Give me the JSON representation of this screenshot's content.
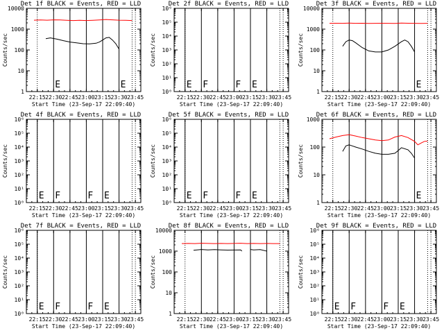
{
  "chart_data": [
    {
      "type": "line",
      "title": "Det 1f BLACK = Events, RED = LLD",
      "xlabel": "Start Time (23-Sep-17 22:09:40)",
      "ylabel": "Counts/sec",
      "yscale": "log",
      "ylim": [
        1,
        10000
      ],
      "yticks": [
        "1",
        "10",
        "100",
        "1000",
        "10000"
      ],
      "xticks": [
        "22:15",
        "22:30",
        "22:45",
        "23:00",
        "23:15",
        "23:30",
        "23:45"
      ],
      "markers": [
        {
          "x": 22.5,
          "label": "E"
        },
        {
          "x": 22.75,
          "label": ""
        },
        {
          "x": 23.0,
          "label": ""
        },
        {
          "x": 23.25,
          "label": ""
        },
        {
          "x": 23.5,
          "label": "E"
        }
      ],
      "series": [
        {
          "name": "Events",
          "color": "#000000",
          "x": [
            22.38,
            22.45,
            22.55,
            22.65,
            22.75,
            22.85,
            22.95,
            23.05,
            23.15,
            23.2,
            23.25,
            23.3,
            23.35,
            23.4,
            23.45,
            23.5
          ],
          "y": [
            350,
            380,
            330,
            280,
            240,
            220,
            200,
            195,
            210,
            240,
            300,
            380,
            400,
            300,
            200,
            110
          ]
        },
        {
          "name": "LLD",
          "color": "#ff0000",
          "x": [
            22.2,
            22.3,
            22.4,
            22.5,
            22.6,
            22.7,
            22.8,
            22.9,
            23.0,
            23.1,
            23.2,
            23.3,
            23.4,
            23.5,
            23.6,
            23.7
          ],
          "y": [
            2700,
            2750,
            2700,
            2800,
            2750,
            2650,
            2600,
            2650,
            2600,
            2650,
            2750,
            2900,
            2800,
            2700,
            2650,
            2600
          ]
        }
      ]
    },
    {
      "type": "line",
      "title": "Det 2f BLACK = Events, RED = LLD",
      "xlabel": "Start Time (23-Sep-17 22:09:40)",
      "ylabel": "Counts/sec",
      "yscale": "log",
      "ylim": [
        1,
        1000000
      ],
      "yticks": [
        "10⁰",
        "10¹",
        "10²",
        "10³",
        "10⁴",
        "10⁵",
        "10⁶"
      ],
      "xticks": [
        "22:15",
        "22:30",
        "22:45",
        "23:00",
        "23:15",
        "23:30",
        "23:45"
      ],
      "markers": [
        {
          "x": 22.25,
          "label": "E"
        },
        {
          "x": 22.5,
          "label": "F"
        },
        {
          "x": 22.75,
          "label": ""
        },
        {
          "x": 23.0,
          "label": "F"
        },
        {
          "x": 23.25,
          "label": "E"
        },
        {
          "x": 23.5,
          "label": ""
        }
      ],
      "series": []
    },
    {
      "type": "line",
      "title": "Det 3f BLACK = Events, RED = LLD",
      "xlabel": "Start Time (23-Sep-17 22:09:40)",
      "ylabel": "Counts/sec",
      "yscale": "log",
      "ylim": [
        1,
        10000
      ],
      "yticks": [
        "1",
        "10",
        "100",
        "1000",
        "10000"
      ],
      "xticks": [
        "22:15",
        "22:30",
        "22:45",
        "23:00",
        "23:15",
        "23:30",
        "23:45"
      ],
      "markers": [
        {
          "x": 22.5,
          "label": ""
        },
        {
          "x": 22.75,
          "label": ""
        },
        {
          "x": 23.0,
          "label": ""
        },
        {
          "x": 23.25,
          "label": ""
        },
        {
          "x": 23.5,
          "label": "E"
        }
      ],
      "series": [
        {
          "name": "Events",
          "color": "#000000",
          "x": [
            22.4,
            22.45,
            22.5,
            22.55,
            22.6,
            22.7,
            22.8,
            22.9,
            23.0,
            23.1,
            23.2,
            23.3,
            23.35,
            23.4,
            23.45,
            23.5
          ],
          "y": [
            150,
            250,
            300,
            280,
            220,
            130,
            90,
            80,
            80,
            100,
            150,
            250,
            300,
            250,
            150,
            80
          ]
        },
        {
          "name": "LLD",
          "color": "#ff0000",
          "x": [
            22.2,
            22.3,
            22.4,
            22.5,
            22.6,
            22.7,
            22.8,
            22.9,
            23.0,
            23.1,
            23.2,
            23.3,
            23.4,
            23.5,
            23.6,
            23.7
          ],
          "y": [
            1900,
            1920,
            1900,
            1950,
            1900,
            1920,
            1880,
            1900,
            1920,
            1900,
            1880,
            1950,
            1920,
            1900,
            1880,
            1900
          ]
        }
      ]
    },
    {
      "type": "line",
      "title": "Det 4f BLACK = Events, RED = LLD",
      "xlabel": "Start Time (23-Sep-17 22:09:40)",
      "ylabel": "Counts/sec",
      "yscale": "log",
      "ylim": [
        1,
        1000000
      ],
      "yticks": [
        "10⁰",
        "10¹",
        "10²",
        "10³",
        "10⁴",
        "10⁵",
        "10⁶"
      ],
      "xticks": [
        "22:15",
        "22:30",
        "22:45",
        "23:00",
        "23:15",
        "23:30",
        "23:45"
      ],
      "markers": [
        {
          "x": 22.25,
          "label": "E"
        },
        {
          "x": 22.5,
          "label": "F"
        },
        {
          "x": 22.75,
          "label": ""
        },
        {
          "x": 23.0,
          "label": "F"
        },
        {
          "x": 23.25,
          "label": "E"
        },
        {
          "x": 23.5,
          "label": ""
        }
      ],
      "series": []
    },
    {
      "type": "line",
      "title": "Det 5f BLACK = Events, RED = LLD",
      "xlabel": "Start Time (23-Sep-17 22:09:40)",
      "ylabel": "Counts/sec",
      "yscale": "log",
      "ylim": [
        1,
        1000000
      ],
      "yticks": [
        "10⁰",
        "10¹",
        "10²",
        "10³",
        "10⁴",
        "10⁵",
        "10⁶"
      ],
      "xticks": [
        "22:15",
        "22:30",
        "22:45",
        "23:00",
        "23:15",
        "23:30",
        "23:45"
      ],
      "markers": [
        {
          "x": 22.25,
          "label": "E"
        },
        {
          "x": 22.5,
          "label": "F"
        },
        {
          "x": 22.75,
          "label": ""
        },
        {
          "x": 23.0,
          "label": "F"
        },
        {
          "x": 23.25,
          "label": "E"
        },
        {
          "x": 23.5,
          "label": ""
        }
      ],
      "series": []
    },
    {
      "type": "line",
      "title": "Det 6f BLACK = Events, RED = LLD",
      "xlabel": "Start Time (23-Sep-17 22:09:40)",
      "ylabel": "Counts/sec",
      "yscale": "log",
      "ylim": [
        1,
        1000
      ],
      "yticks": [
        "1",
        "10",
        "100",
        "1000"
      ],
      "xticks": [
        "22:15",
        "22:30",
        "22:45",
        "23:00",
        "23:15",
        "23:30",
        "23:45"
      ],
      "markers": [
        {
          "x": 22.5,
          "label": ""
        },
        {
          "x": 22.75,
          "label": ""
        },
        {
          "x": 23.0,
          "label": ""
        },
        {
          "x": 23.25,
          "label": ""
        },
        {
          "x": 23.5,
          "label": "E"
        }
      ],
      "series": [
        {
          "name": "Events",
          "color": "#000000",
          "x": [
            22.4,
            22.45,
            22.5,
            22.6,
            22.7,
            22.8,
            22.9,
            23.0,
            23.1,
            23.2,
            23.25,
            23.3,
            23.4,
            23.45,
            23.5
          ],
          "y": [
            70,
            110,
            120,
            100,
            85,
            70,
            60,
            55,
            55,
            60,
            75,
            95,
            80,
            60,
            40
          ]
        },
        {
          "name": "LLD",
          "color": "#ff0000",
          "x": [
            22.2,
            22.3,
            22.4,
            22.5,
            22.6,
            22.7,
            22.8,
            22.9,
            23.0,
            23.1,
            23.2,
            23.3,
            23.4,
            23.5,
            23.55,
            23.6,
            23.65,
            23.7
          ],
          "y": [
            200,
            230,
            260,
            280,
            250,
            220,
            200,
            180,
            170,
            180,
            230,
            260,
            220,
            160,
            120,
            140,
            160,
            165
          ]
        }
      ]
    },
    {
      "type": "line",
      "title": "Det 7f BLACK = Events, RED = LLD",
      "xlabel": "Start Time (23-Sep-17 22:09:40)",
      "ylabel": "Counts/sec",
      "yscale": "log",
      "ylim": [
        1,
        1000000
      ],
      "yticks": [
        "10⁰",
        "10¹",
        "10²",
        "10³",
        "10⁴",
        "10⁵",
        "10⁶"
      ],
      "xticks": [
        "22:15",
        "22:30",
        "22:45",
        "23:00",
        "23:15",
        "23:30",
        "23:45"
      ],
      "markers": [
        {
          "x": 22.25,
          "label": "E"
        },
        {
          "x": 22.5,
          "label": "F"
        },
        {
          "x": 22.75,
          "label": ""
        },
        {
          "x": 23.0,
          "label": "F"
        },
        {
          "x": 23.25,
          "label": "E"
        },
        {
          "x": 23.5,
          "label": ""
        }
      ],
      "series": []
    },
    {
      "type": "line",
      "title": "Det 8f BLACK = Events, RED = LLD",
      "xlabel": "Start Time (23-Sep-17 22:09:40)",
      "ylabel": "Counts/sec",
      "yscale": "log",
      "ylim": [
        1,
        10000
      ],
      "yticks": [
        "1",
        "10",
        "100",
        "1000",
        "10000"
      ],
      "xticks": [
        "22:15",
        "22:30",
        "22:45",
        "23:00",
        "23:15",
        "23:30",
        "23:45"
      ],
      "markers": [
        {
          "x": 22.5,
          "label": ""
        },
        {
          "x": 22.75,
          "label": ""
        },
        {
          "x": 23.0,
          "label": ""
        },
        {
          "x": 23.25,
          "label": ""
        },
        {
          "x": 23.5,
          "label": ""
        }
      ],
      "series": [
        {
          "name": "Events",
          "color": "#000000",
          "x": [
            22.38,
            22.5,
            22.6,
            22.7,
            22.8,
            22.9,
            23.0,
            23.1,
            23.12,
            null,
            23.25,
            23.3,
            23.4,
            23.5
          ],
          "y": [
            1100,
            1200,
            1150,
            1180,
            1150,
            1120,
            1130,
            1150,
            1000,
            null,
            1200,
            1150,
            1180,
            1000
          ]
        },
        {
          "name": "LLD",
          "color": "#ff0000",
          "x": [
            22.2,
            22.3,
            22.4,
            22.5,
            22.6,
            22.7,
            22.8,
            22.9,
            23.0,
            23.1,
            23.2,
            23.3,
            23.4,
            23.5,
            23.6,
            23.7
          ],
          "y": [
            2300,
            2350,
            2300,
            2400,
            2350,
            2300,
            2350,
            2300,
            2350,
            2400,
            2300,
            2350,
            2300,
            2350,
            2300,
            2300
          ]
        }
      ]
    },
    {
      "type": "line",
      "title": "Det 9f BLACK = Events, RED = LLD",
      "xlabel": "Start Time (23-Sep-17 22:09:40)",
      "ylabel": "Counts/sec",
      "yscale": "log",
      "ylim": [
        1,
        1000000
      ],
      "yticks": [
        "10⁰",
        "10¹",
        "10²",
        "10³",
        "10⁴",
        "10⁵",
        "10⁶"
      ],
      "xticks": [
        "22:15",
        "22:30",
        "22:45",
        "23:00",
        "23:15",
        "23:30",
        "23:45"
      ],
      "markers": [
        {
          "x": 22.25,
          "label": "E"
        },
        {
          "x": 22.5,
          "label": "F"
        },
        {
          "x": 22.75,
          "label": ""
        },
        {
          "x": 23.0,
          "label": "F"
        },
        {
          "x": 23.25,
          "label": "E"
        },
        {
          "x": 23.5,
          "label": ""
        }
      ],
      "series": []
    }
  ]
}
